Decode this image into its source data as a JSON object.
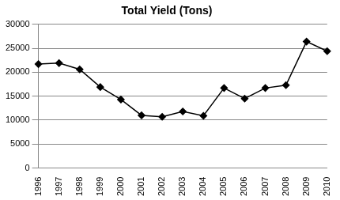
{
  "chart_data": {
    "type": "line",
    "title": "Total Yield (Tons)",
    "categories": [
      "1996",
      "1997",
      "1998",
      "1999",
      "2000",
      "2001",
      "2002",
      "2003",
      "2004",
      "2005",
      "2006",
      "2007",
      "2008",
      "2009",
      "2010"
    ],
    "values": [
      21700,
      21900,
      20600,
      16900,
      14300,
      11000,
      10700,
      11800,
      10900,
      16700,
      14500,
      16700,
      17300,
      26400,
      24400
    ],
    "color": "#000000",
    "marker": "diamond",
    "ylim": [
      0,
      30000
    ],
    "yticks": [
      0,
      5000,
      10000,
      15000,
      20000,
      25000,
      30000
    ],
    "grid": true
  }
}
